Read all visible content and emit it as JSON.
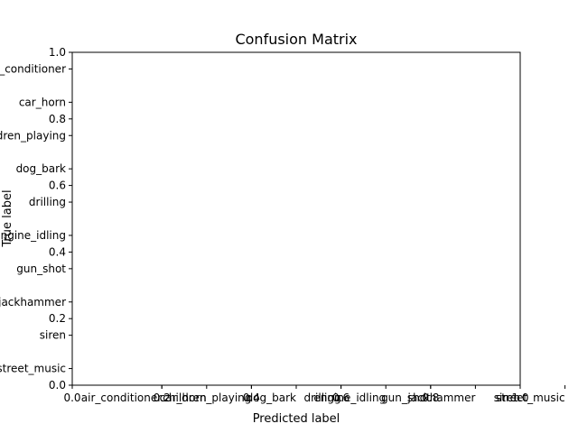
{
  "chart_data": {
    "type": "heatmap",
    "title": "Confusion Matrix",
    "xlabel": "Predicted label",
    "ylabel": "True label",
    "xlim": [
      0.0,
      1.0
    ],
    "ylim": [
      0.0,
      1.0
    ],
    "x_numeric_ticks": [
      "0.0",
      "0.2",
      "0.4",
      "0.6",
      "0.8",
      "1.0"
    ],
    "y_numeric_ticks": [
      "0.0",
      "0.2",
      "0.4",
      "0.6",
      "0.8",
      "1.0"
    ],
    "x_class_ticks": [
      {
        "value": 0.2,
        "label": "air_conditioner"
      },
      {
        "value": 0.3,
        "label": "car_horn"
      },
      {
        "value": 0.4,
        "label": "children_playing"
      },
      {
        "value": 0.5,
        "label": "dog_bark"
      },
      {
        "value": 0.6,
        "label": "drilling"
      },
      {
        "value": 0.7,
        "label": "engine_idling"
      },
      {
        "value": 0.8,
        "label": "gun_shot"
      },
      {
        "value": 0.9,
        "label": "jackhammer"
      },
      {
        "value": 1.0,
        "label": "siren"
      },
      {
        "value": 1.1,
        "label": "street_music"
      }
    ],
    "y_class_ticks": [
      {
        "value": 0.95,
        "label": "air_conditioner"
      },
      {
        "value": 0.85,
        "label": "car_horn"
      },
      {
        "value": 0.75,
        "label": "children_playing"
      },
      {
        "value": 0.65,
        "label": "dog_bark"
      },
      {
        "value": 0.55,
        "label": "drilling"
      },
      {
        "value": 0.45,
        "label": "engine_idling"
      },
      {
        "value": 0.35,
        "label": "gun_shot"
      },
      {
        "value": 0.25,
        "label": "jackhammer"
      },
      {
        "value": 0.15,
        "label": "siren"
      },
      {
        "value": 0.05,
        "label": "street_music"
      }
    ],
    "grid": false,
    "values": []
  }
}
